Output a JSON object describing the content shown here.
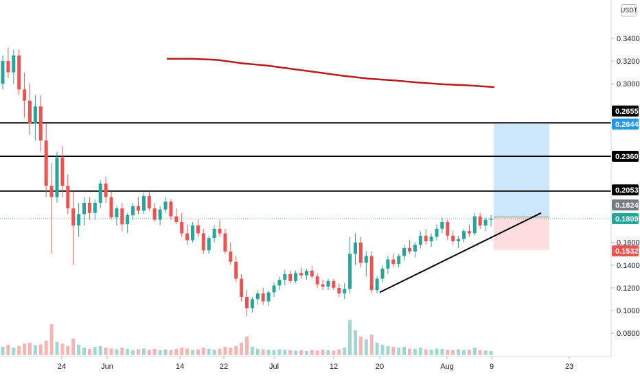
{
  "currency": "USDT",
  "colors": {
    "up": "#26a69a",
    "down": "#ef5350",
    "volume_up": "#9fd8d2",
    "volume_down": "#f7b4b3",
    "ma": "#b71c1c",
    "level": "#000000",
    "trendline": "#000000",
    "profit_zone": "#bbdefb",
    "loss_zone": "#fcd4d4",
    "last_price": "#26a69a",
    "axis_text": "#131722"
  },
  "chart_data": {
    "type": "candlestick",
    "x_ticks": [
      "24",
      "Jun",
      "14",
      "22",
      "Jul",
      "12",
      "20",
      "Aug",
      "9",
      "23"
    ],
    "y_ticks": [
      0.34,
      0.32,
      0.3,
      0.16,
      0.14,
      0.12,
      0.1,
      0.08
    ],
    "y_tick_labels": [
      "0.3400",
      "0.3200",
      "0.3000",
      "0.1600",
      "0.1400",
      "0.1200",
      "0.1000",
      "0.0800"
    ],
    "ylim": [
      0.062,
      0.355
    ],
    "price_tags": [
      {
        "label": "0.2655",
        "value": 0.2655,
        "style": "black"
      },
      {
        "label": "0.2644",
        "value": 0.2644,
        "style": "blue"
      },
      {
        "label": "0.2360",
        "value": 0.236,
        "style": "black"
      },
      {
        "label": "0.2053",
        "value": 0.2053,
        "style": "black"
      },
      {
        "label": "0.1824",
        "value": 0.1824,
        "style": "gray"
      },
      {
        "label": "0.1809",
        "value": 0.1809,
        "style": "teal"
      },
      {
        "label": "0.1532",
        "value": 0.1532,
        "style": "red"
      }
    ],
    "horizontal_levels": [
      0.2655,
      0.236,
      0.2053
    ],
    "last_price": 0.1809,
    "moving_average": [
      [
        0.322,
        0.322,
        0.321,
        0.318,
        0.316,
        0.313,
        0.31,
        0.307,
        0.3045,
        0.303,
        0.301,
        0.2995,
        0.2985,
        0.297
      ]
    ],
    "candles": [
      [
        0.3,
        0.325,
        0.295,
        0.32
      ],
      [
        0.32,
        0.332,
        0.305,
        0.31
      ],
      [
        0.31,
        0.33,
        0.3,
        0.325
      ],
      [
        0.325,
        0.33,
        0.29,
        0.295
      ],
      [
        0.295,
        0.31,
        0.27,
        0.285
      ],
      [
        0.285,
        0.3,
        0.255,
        0.265
      ],
      [
        0.265,
        0.29,
        0.25,
        0.28
      ],
      [
        0.28,
        0.29,
        0.24,
        0.25
      ],
      [
        0.25,
        0.265,
        0.2,
        0.21
      ],
      [
        0.21,
        0.23,
        0.15,
        0.2
      ],
      [
        0.2,
        0.24,
        0.195,
        0.235
      ],
      [
        0.235,
        0.245,
        0.2,
        0.21
      ],
      [
        0.21,
        0.22,
        0.185,
        0.19
      ],
      [
        0.19,
        0.205,
        0.14,
        0.175
      ],
      [
        0.175,
        0.195,
        0.165,
        0.185
      ],
      [
        0.185,
        0.2,
        0.175,
        0.195
      ],
      [
        0.195,
        0.2,
        0.18,
        0.186
      ],
      [
        0.186,
        0.198,
        0.18,
        0.195
      ],
      [
        0.195,
        0.215,
        0.19,
        0.212
      ],
      [
        0.212,
        0.218,
        0.195,
        0.2
      ],
      [
        0.2,
        0.205,
        0.18,
        0.182
      ],
      [
        0.182,
        0.192,
        0.175,
        0.19
      ],
      [
        0.19,
        0.195,
        0.17,
        0.176
      ],
      [
        0.176,
        0.186,
        0.168,
        0.184
      ],
      [
        0.184,
        0.195,
        0.18,
        0.192
      ],
      [
        0.192,
        0.2,
        0.185,
        0.188
      ],
      [
        0.188,
        0.204,
        0.185,
        0.201
      ],
      [
        0.201,
        0.205,
        0.188,
        0.19
      ],
      [
        0.19,
        0.195,
        0.178,
        0.18
      ],
      [
        0.18,
        0.192,
        0.175,
        0.189
      ],
      [
        0.189,
        0.2,
        0.186,
        0.196
      ],
      [
        0.196,
        0.198,
        0.18,
        0.183
      ],
      [
        0.183,
        0.19,
        0.176,
        0.178
      ],
      [
        0.178,
        0.186,
        0.165,
        0.168
      ],
      [
        0.168,
        0.176,
        0.158,
        0.162
      ],
      [
        0.162,
        0.178,
        0.16,
        0.175
      ],
      [
        0.175,
        0.18,
        0.165,
        0.168
      ],
      [
        0.168,
        0.172,
        0.15,
        0.153
      ],
      [
        0.153,
        0.166,
        0.15,
        0.164
      ],
      [
        0.164,
        0.175,
        0.16,
        0.172
      ],
      [
        0.172,
        0.18,
        0.165,
        0.168
      ],
      [
        0.168,
        0.172,
        0.15,
        0.152
      ],
      [
        0.152,
        0.16,
        0.14,
        0.143
      ],
      [
        0.143,
        0.148,
        0.125,
        0.128
      ],
      [
        0.128,
        0.132,
        0.108,
        0.112
      ],
      [
        0.112,
        0.118,
        0.095,
        0.102
      ],
      [
        0.102,
        0.112,
        0.098,
        0.11
      ],
      [
        0.11,
        0.118,
        0.105,
        0.115
      ],
      [
        0.115,
        0.12,
        0.105,
        0.108
      ],
      [
        0.108,
        0.118,
        0.104,
        0.116
      ],
      [
        0.116,
        0.125,
        0.112,
        0.122
      ],
      [
        0.122,
        0.13,
        0.118,
        0.127
      ],
      [
        0.127,
        0.136,
        0.122,
        0.132
      ],
      [
        0.132,
        0.135,
        0.124,
        0.126
      ],
      [
        0.126,
        0.135,
        0.124,
        0.133
      ],
      [
        0.133,
        0.138,
        0.128,
        0.131
      ],
      [
        0.131,
        0.137,
        0.127,
        0.135
      ],
      [
        0.135,
        0.139,
        0.128,
        0.13
      ],
      [
        0.13,
        0.133,
        0.12,
        0.123
      ],
      [
        0.123,
        0.127,
        0.118,
        0.121
      ],
      [
        0.121,
        0.128,
        0.118,
        0.126
      ],
      [
        0.126,
        0.128,
        0.118,
        0.12
      ],
      [
        0.12,
        0.124,
        0.112,
        0.115
      ],
      [
        0.115,
        0.124,
        0.11,
        0.119
      ],
      [
        0.119,
        0.165,
        0.115,
        0.15
      ],
      [
        0.15,
        0.168,
        0.14,
        0.16
      ],
      [
        0.16,
        0.165,
        0.138,
        0.142
      ],
      [
        0.142,
        0.152,
        0.13,
        0.148
      ],
      [
        0.148,
        0.152,
        0.115,
        0.118
      ],
      [
        0.118,
        0.13,
        0.115,
        0.128
      ],
      [
        0.128,
        0.14,
        0.125,
        0.137
      ],
      [
        0.137,
        0.148,
        0.132,
        0.145
      ],
      [
        0.145,
        0.15,
        0.138,
        0.141
      ],
      [
        0.141,
        0.15,
        0.138,
        0.148
      ],
      [
        0.148,
        0.158,
        0.144,
        0.155
      ],
      [
        0.155,
        0.162,
        0.15,
        0.152
      ],
      [
        0.152,
        0.16,
        0.147,
        0.158
      ],
      [
        0.158,
        0.17,
        0.155,
        0.166
      ],
      [
        0.166,
        0.172,
        0.158,
        0.161
      ],
      [
        0.161,
        0.168,
        0.156,
        0.165
      ],
      [
        0.165,
        0.176,
        0.162,
        0.172
      ],
      [
        0.172,
        0.182,
        0.168,
        0.178
      ],
      [
        0.178,
        0.18,
        0.162,
        0.166
      ],
      [
        0.166,
        0.17,
        0.158,
        0.161
      ],
      [
        0.161,
        0.166,
        0.155,
        0.163
      ],
      [
        0.163,
        0.172,
        0.16,
        0.17
      ],
      [
        0.17,
        0.176,
        0.165,
        0.168
      ],
      [
        0.168,
        0.186,
        0.166,
        0.183
      ],
      [
        0.183,
        0.186,
        0.172,
        0.175
      ],
      [
        0.175,
        0.182,
        0.17,
        0.18
      ],
      [
        0.18,
        0.184,
        0.174,
        0.181
      ]
    ],
    "volume": [
      0.2,
      0.25,
      0.18,
      0.22,
      0.28,
      0.3,
      0.24,
      0.26,
      0.35,
      0.75,
      0.32,
      0.28,
      0.22,
      0.4,
      0.25,
      0.18,
      0.15,
      0.2,
      0.22,
      0.18,
      0.16,
      0.14,
      0.18,
      0.15,
      0.12,
      0.14,
      0.16,
      0.13,
      0.15,
      0.12,
      0.14,
      0.12,
      0.15,
      0.18,
      0.16,
      0.12,
      0.14,
      0.18,
      0.15,
      0.13,
      0.15,
      0.2,
      0.18,
      0.22,
      0.3,
      0.45,
      0.2,
      0.15,
      0.14,
      0.13,
      0.12,
      0.14,
      0.13,
      0.12,
      0.11,
      0.12,
      0.1,
      0.12,
      0.11,
      0.13,
      0.12,
      0.11,
      0.14,
      0.18,
      0.85,
      0.6,
      0.45,
      0.38,
      0.5,
      0.3,
      0.25,
      0.22,
      0.2,
      0.18,
      0.2,
      0.16,
      0.15,
      0.18,
      0.14,
      0.13,
      0.16,
      0.15,
      0.13,
      0.12,
      0.14,
      0.12,
      0.13,
      0.18,
      0.12,
      0.11,
      0.1
    ],
    "trendline": {
      "start_candle": 69,
      "start_price": 0.116,
      "end_candle": 101,
      "end_price": 0.186
    },
    "position": {
      "start_candle": 90,
      "end_candle": 100,
      "entry": 0.1824,
      "target": 0.2644,
      "stop": 0.1532
    }
  }
}
